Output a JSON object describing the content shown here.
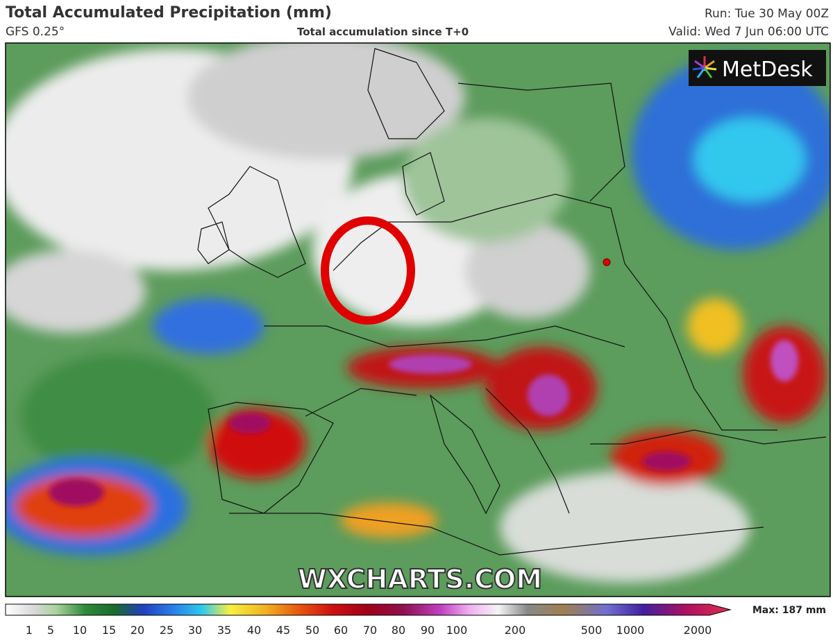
{
  "header": {
    "title": "Total Accumulated Precipitation (mm)",
    "model": "GFS 0.25°",
    "subtitle": "Total accumulation since T+0",
    "run": "Run: Tue 30 May 00Z",
    "valid": "Valid: Wed 7 Jun 06:00 UTC"
  },
  "logo": "MetDesk",
  "watermark": "WXCHARTS.COM",
  "colorbar": {
    "ticks": [
      1,
      5,
      10,
      15,
      20,
      25,
      30,
      35,
      40,
      45,
      50,
      60,
      70,
      80,
      90,
      100,
      200,
      500,
      1000,
      2000
    ],
    "max_label": "Max: 187 mm"
  }
}
